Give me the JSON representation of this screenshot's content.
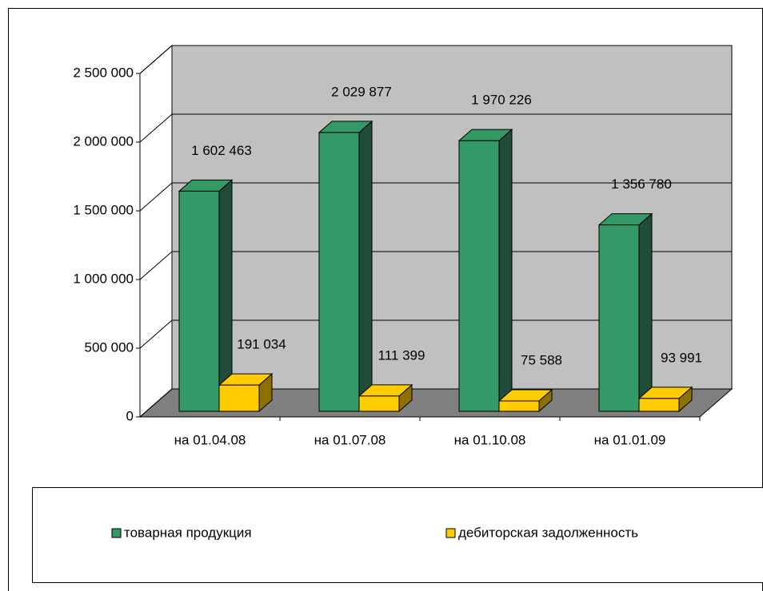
{
  "chart_data": {
    "type": "bar3d",
    "categories": [
      "на 01.04.08",
      "на 01.07.08",
      "на 01.10.08",
      "на 01.01.09"
    ],
    "series": [
      {
        "name": "товарная продукция",
        "color": "#339966",
        "side": "#1f4d3a",
        "values": [
          1602463,
          2029877,
          1970226,
          1356780
        ],
        "value_labels": [
          "1 602 463",
          "2 029 877",
          "1 970 226",
          "1 356 780"
        ]
      },
      {
        "name": "дебиторская задолженность",
        "color": "#ffcc00",
        "side": "#8c7000",
        "values": [
          191034,
          111399,
          75588,
          93991
        ],
        "value_labels": [
          "191 034",
          "111 399",
          "75 588",
          "93 991"
        ]
      }
    ],
    "ylim": [
      0,
      2500000
    ],
    "yticks": [
      0,
      {
        "value": 500000,
        "label": "500 000"
      },
      {
        "value": 1000000,
        "label": "1 000 000"
      },
      {
        "value": 1500000,
        "label": "1 500 000"
      },
      {
        "value": 2000000,
        "label": "2 000 000"
      },
      {
        "value": 2500000,
        "label": "2 500 000"
      }
    ],
    "grid": true,
    "legend": "bottom"
  }
}
